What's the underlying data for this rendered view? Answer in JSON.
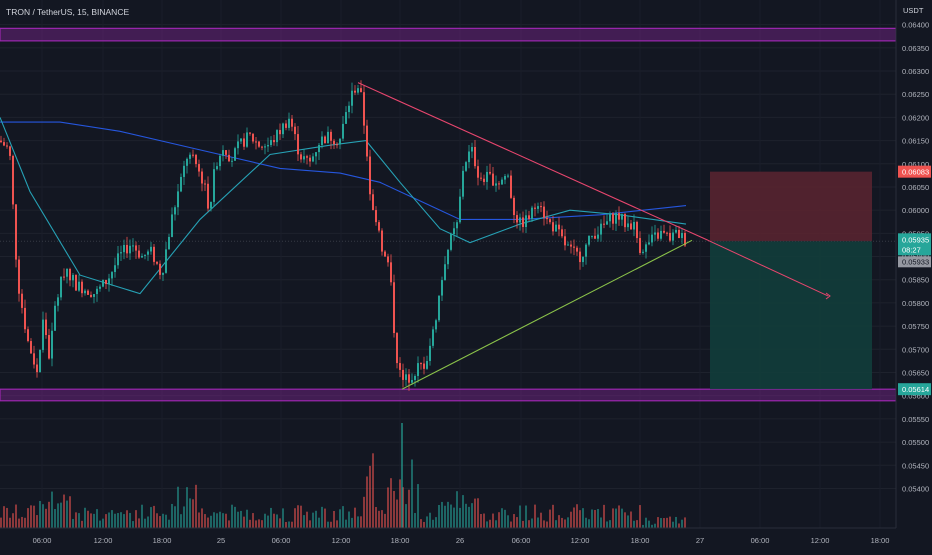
{
  "header": {
    "title": "TRON / TetherUS, 15, BINANCE",
    "currency": "USDT"
  },
  "colors": {
    "background": "#131722",
    "up": "#26a69a",
    "down": "#ef5350",
    "zone": "#9c27b0",
    "resistance_line": "#e8466e",
    "support_line": "#8bc34a",
    "ma_short": "#26a1b5",
    "ma_long": "#2962ff",
    "stop_zone": "#5c2530",
    "target_zone": "#123d3b"
  },
  "chart_data": {
    "type": "candlestick",
    "symbol": "TRON / TetherUS",
    "interval": "15",
    "exchange": "BINANCE",
    "ylim": [
      0.0536,
      0.0641
    ],
    "y_ticks": [
      "0.06400",
      "0.06350",
      "0.06300",
      "0.06250",
      "0.06200",
      "0.06150",
      "0.06100",
      "0.06050",
      "0.06000",
      "0.05950",
      "0.05900",
      "0.05850",
      "0.05800",
      "0.05750",
      "0.05700",
      "0.05650",
      "0.05600",
      "0.05550",
      "0.05500",
      "0.05450",
      "0.05400"
    ],
    "x_ticks": [
      "06:00",
      "12:00",
      "18:00",
      "25",
      "06:00",
      "12:00",
      "18:00",
      "26",
      "06:00",
      "12:00",
      "18:00",
      "27",
      "06:00",
      "12:00",
      "18:00"
    ],
    "price_tags": {
      "stop": "0.06083",
      "last": "0.05935",
      "countdown": "08:27",
      "entry": "0.05933",
      "target": "0.05614"
    },
    "price_path": [
      {
        "t": 0,
        "p": 0.0615
      },
      {
        "t": 10,
        "p": 0.0613
      },
      {
        "t": 18,
        "p": 0.0585
      },
      {
        "t": 28,
        "p": 0.0572
      },
      {
        "t": 38,
        "p": 0.0565
      },
      {
        "t": 44,
        "p": 0.0577
      },
      {
        "t": 50,
        "p": 0.0568
      },
      {
        "t": 56,
        "p": 0.058
      },
      {
        "t": 66,
        "p": 0.0588
      },
      {
        "t": 76,
        "p": 0.0584
      },
      {
        "t": 86,
        "p": 0.0583
      },
      {
        "t": 96,
        "p": 0.0582
      },
      {
        "t": 108,
        "p": 0.0585
      },
      {
        "t": 120,
        "p": 0.059
      },
      {
        "t": 132,
        "p": 0.0593
      },
      {
        "t": 142,
        "p": 0.059
      },
      {
        "t": 152,
        "p": 0.0591
      },
      {
        "t": 162,
        "p": 0.0586
      },
      {
        "t": 172,
        "p": 0.0598
      },
      {
        "t": 180,
        "p": 0.0605
      },
      {
        "t": 188,
        "p": 0.0612
      },
      {
        "t": 196,
        "p": 0.061
      },
      {
        "t": 204,
        "p": 0.0606
      },
      {
        "t": 210,
        "p": 0.06
      },
      {
        "t": 216,
        "p": 0.061
      },
      {
        "t": 224,
        "p": 0.0614
      },
      {
        "t": 232,
        "p": 0.0611
      },
      {
        "t": 240,
        "p": 0.0614
      },
      {
        "t": 250,
        "p": 0.0616
      },
      {
        "t": 260,
        "p": 0.0614
      },
      {
        "t": 270,
        "p": 0.0614
      },
      {
        "t": 280,
        "p": 0.0617
      },
      {
        "t": 290,
        "p": 0.062
      },
      {
        "t": 300,
        "p": 0.0612
      },
      {
        "t": 310,
        "p": 0.061
      },
      {
        "t": 320,
        "p": 0.0615
      },
      {
        "t": 330,
        "p": 0.0616
      },
      {
        "t": 340,
        "p": 0.0615
      },
      {
        "t": 348,
        "p": 0.0622
      },
      {
        "t": 354,
        "p": 0.0626
      },
      {
        "t": 360,
        "p": 0.0627
      },
      {
        "t": 366,
        "p": 0.0616
      },
      {
        "t": 372,
        "p": 0.06
      },
      {
        "t": 378,
        "p": 0.0598
      },
      {
        "t": 384,
        "p": 0.059
      },
      {
        "t": 390,
        "p": 0.0588
      },
      {
        "t": 396,
        "p": 0.057
      },
      {
        "t": 402,
        "p": 0.0563
      },
      {
        "t": 410,
        "p": 0.0564
      },
      {
        "t": 418,
        "p": 0.0566
      },
      {
        "t": 426,
        "p": 0.0567
      },
      {
        "t": 434,
        "p": 0.0574
      },
      {
        "t": 440,
        "p": 0.0582
      },
      {
        "t": 446,
        "p": 0.059
      },
      {
        "t": 452,
        "p": 0.0594
      },
      {
        "t": 458,
        "p": 0.0597
      },
      {
        "t": 464,
        "p": 0.061
      },
      {
        "t": 472,
        "p": 0.0613
      },
      {
        "t": 480,
        "p": 0.0607
      },
      {
        "t": 490,
        "p": 0.0607
      },
      {
        "t": 500,
        "p": 0.0606
      },
      {
        "t": 508,
        "p": 0.0608
      },
      {
        "t": 514,
        "p": 0.06
      },
      {
        "t": 520,
        "p": 0.0597
      },
      {
        "t": 528,
        "p": 0.0598
      },
      {
        "t": 534,
        "p": 0.06
      },
      {
        "t": 540,
        "p": 0.0603
      },
      {
        "t": 546,
        "p": 0.0598
      },
      {
        "t": 556,
        "p": 0.0596
      },
      {
        "t": 564,
        "p": 0.0593
      },
      {
        "t": 572,
        "p": 0.0591
      },
      {
        "t": 580,
        "p": 0.059
      },
      {
        "t": 586,
        "p": 0.0592
      },
      {
        "t": 594,
        "p": 0.0595
      },
      {
        "t": 602,
        "p": 0.0596
      },
      {
        "t": 610,
        "p": 0.0598
      },
      {
        "t": 618,
        "p": 0.0599
      },
      {
        "t": 626,
        "p": 0.0597
      },
      {
        "t": 634,
        "p": 0.0597
      },
      {
        "t": 640,
        "p": 0.0592
      },
      {
        "t": 646,
        "p": 0.0592
      },
      {
        "t": 654,
        "p": 0.0594
      },
      {
        "t": 662,
        "p": 0.0595
      },
      {
        "t": 670,
        "p": 0.0594
      },
      {
        "t": 678,
        "p": 0.0595
      },
      {
        "t": 686,
        "p": 0.05935
      }
    ],
    "ma_short": [
      {
        "t": 0,
        "p": 0.062
      },
      {
        "t": 30,
        "p": 0.0604
      },
      {
        "t": 80,
        "p": 0.0586
      },
      {
        "t": 140,
        "p": 0.0582
      },
      {
        "t": 200,
        "p": 0.0598
      },
      {
        "t": 270,
        "p": 0.0612
      },
      {
        "t": 330,
        "p": 0.0614
      },
      {
        "t": 366,
        "p": 0.0615
      },
      {
        "t": 400,
        "p": 0.0606
      },
      {
        "t": 440,
        "p": 0.0596
      },
      {
        "t": 470,
        "p": 0.0593
      },
      {
        "t": 520,
        "p": 0.0597
      },
      {
        "t": 570,
        "p": 0.06
      },
      {
        "t": 620,
        "p": 0.0599
      },
      {
        "t": 686,
        "p": 0.0597
      }
    ],
    "ma_long": [
      {
        "t": 0,
        "p": 0.0619
      },
      {
        "t": 60,
        "p": 0.0619
      },
      {
        "t": 120,
        "p": 0.0617
      },
      {
        "t": 200,
        "p": 0.0613
      },
      {
        "t": 280,
        "p": 0.0609
      },
      {
        "t": 340,
        "p": 0.0608
      },
      {
        "t": 380,
        "p": 0.0606
      },
      {
        "t": 420,
        "p": 0.0602
      },
      {
        "t": 460,
        "p": 0.0598
      },
      {
        "t": 520,
        "p": 0.0598
      },
      {
        "t": 600,
        "p": 0.0599
      },
      {
        "t": 686,
        "p": 0.0601
      }
    ],
    "horizontal_zones": [
      {
        "from": 0.06365,
        "to": 0.06392
      },
      {
        "from": 0.05589,
        "to": 0.05614
      }
    ],
    "resistance_line": [
      {
        "t": 358,
        "p": 0.06275
      },
      {
        "t": 708,
        "p": 0.05935
      }
    ],
    "resistance_projection": [
      {
        "t": 708,
        "p": 0.05935
      },
      {
        "t": 828,
        "p": 0.05815
      }
    ],
    "support_line": [
      {
        "t": 402,
        "p": 0.05614
      },
      {
        "t": 692,
        "p": 0.05935
      }
    ],
    "position": {
      "entry": 0.05933,
      "stop": 0.06083,
      "target": 0.05614
    }
  }
}
